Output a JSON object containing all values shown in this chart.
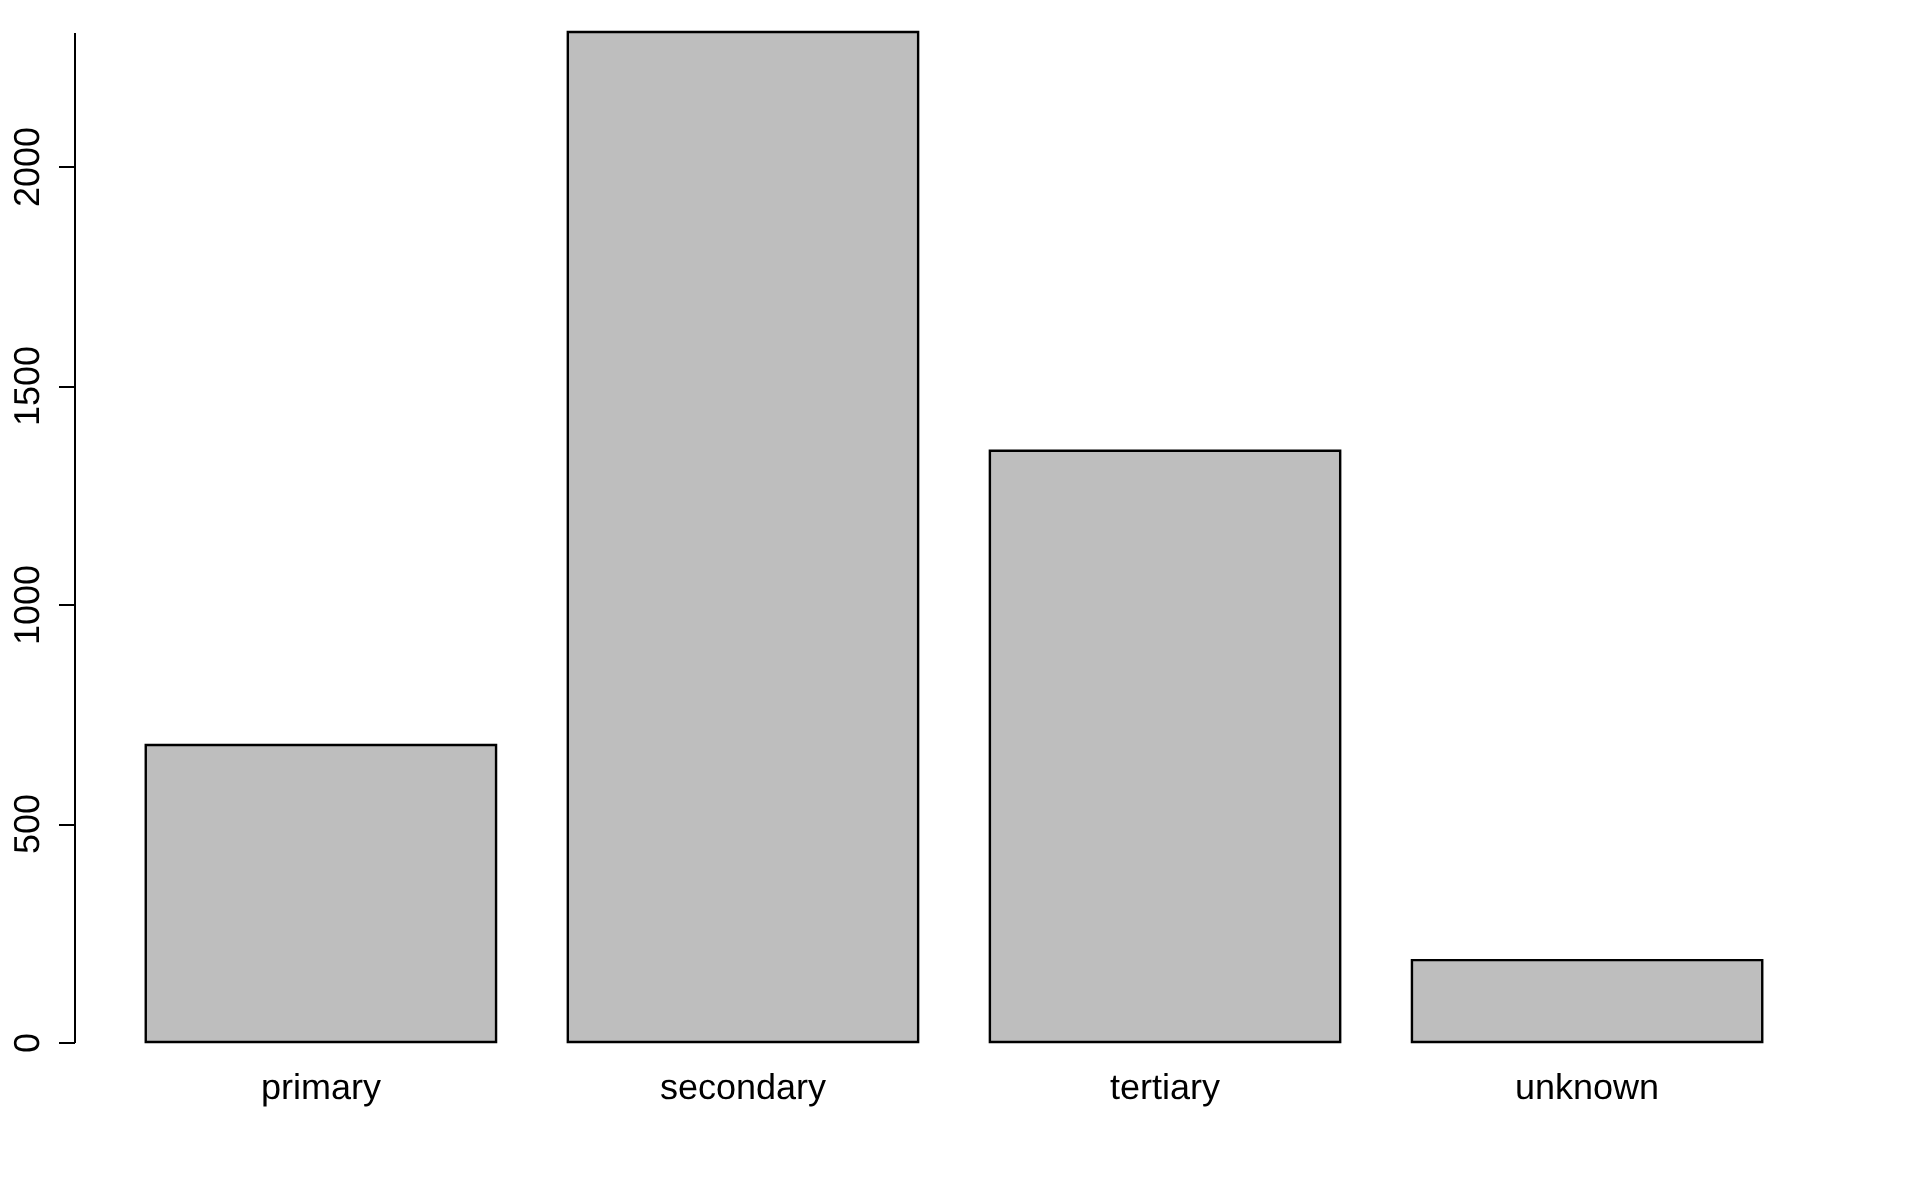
{
  "chart_data": {
    "type": "bar",
    "categories": [
      "primary",
      "secondary",
      "tertiary",
      "unknown"
    ],
    "values": [
      678,
      2306,
      1350,
      187
    ],
    "color": "#bebebe",
    "ylim": [
      0,
      2306
    ],
    "yticks": [
      0,
      500,
      1000,
      1500,
      2000
    ],
    "grid": false
  }
}
